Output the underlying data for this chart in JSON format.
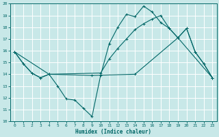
{
  "xlabel": "Humidex (Indice chaleur)",
  "bg_color": "#c8e8e8",
  "grid_color": "#ffffff",
  "line_color": "#006666",
  "xlim": [
    -0.5,
    23.5
  ],
  "ylim": [
    10,
    20
  ],
  "yticks": [
    10,
    11,
    12,
    13,
    14,
    15,
    16,
    17,
    18,
    19,
    20
  ],
  "xticks": [
    0,
    1,
    2,
    3,
    4,
    5,
    6,
    7,
    8,
    9,
    10,
    11,
    12,
    13,
    14,
    15,
    16,
    17,
    18,
    19,
    20,
    21,
    22,
    23
  ],
  "line1_x": [
    0,
    1,
    2,
    3,
    4,
    5,
    6,
    7,
    8,
    9,
    10,
    11,
    12,
    13,
    14,
    15,
    16,
    17,
    18,
    19,
    20,
    21,
    22,
    23
  ],
  "line1_y": [
    15.9,
    14.9,
    14.1,
    13.7,
    14.0,
    13.0,
    11.9,
    11.8,
    11.1,
    10.4,
    13.9,
    16.6,
    18.0,
    19.1,
    18.9,
    19.8,
    19.3,
    18.4,
    17.9,
    17.1,
    17.9,
    15.9,
    14.9,
    13.7
  ],
  "line2_x": [
    0,
    1,
    2,
    3,
    4,
    10,
    11,
    12,
    13,
    14,
    15,
    16,
    17,
    18,
    19,
    20,
    21,
    22,
    23
  ],
  "line2_y": [
    15.9,
    14.9,
    14.1,
    13.7,
    14.0,
    14.1,
    15.3,
    16.2,
    17.0,
    17.8,
    18.3,
    18.7,
    19.0,
    17.9,
    17.1,
    17.9,
    15.9,
    14.9,
    13.7
  ],
  "line3_x": [
    0,
    4,
    9,
    14,
    19,
    23
  ],
  "line3_y": [
    15.9,
    14.0,
    13.9,
    14.0,
    17.1,
    13.7
  ]
}
